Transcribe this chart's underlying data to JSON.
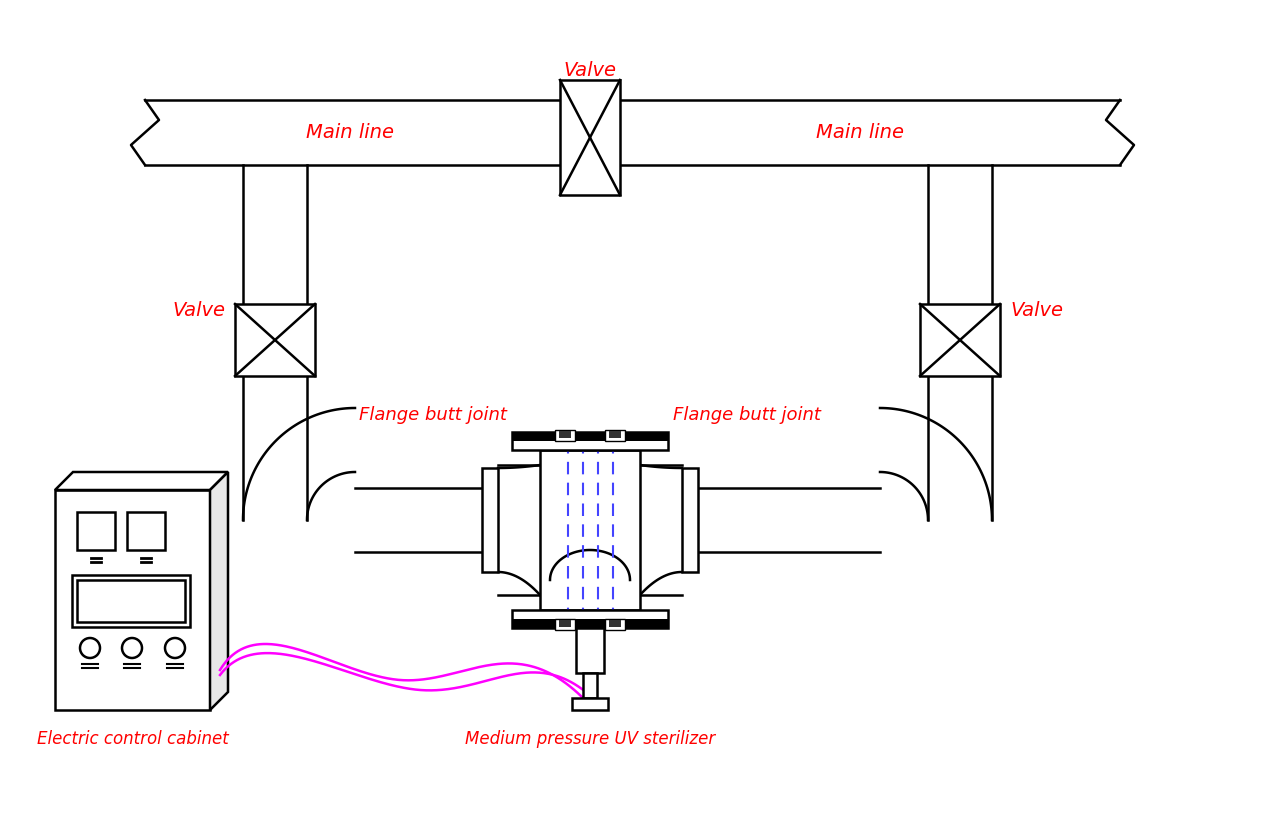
{
  "bg_color": "#ffffff",
  "line_color": "#000000",
  "label_color": "#ff0000",
  "blue_color": "#4444ff",
  "magenta_color": "#ff00ff",
  "main_line_label": "Main line",
  "valve_label": "Valve",
  "flange_label": "Flange butt joint",
  "cabinet_label": "Electric control cabinet",
  "uv_label": "Medium pressure UV sterilizer",
  "fig_w": 12.69,
  "fig_h": 8.25,
  "dpi": 100
}
